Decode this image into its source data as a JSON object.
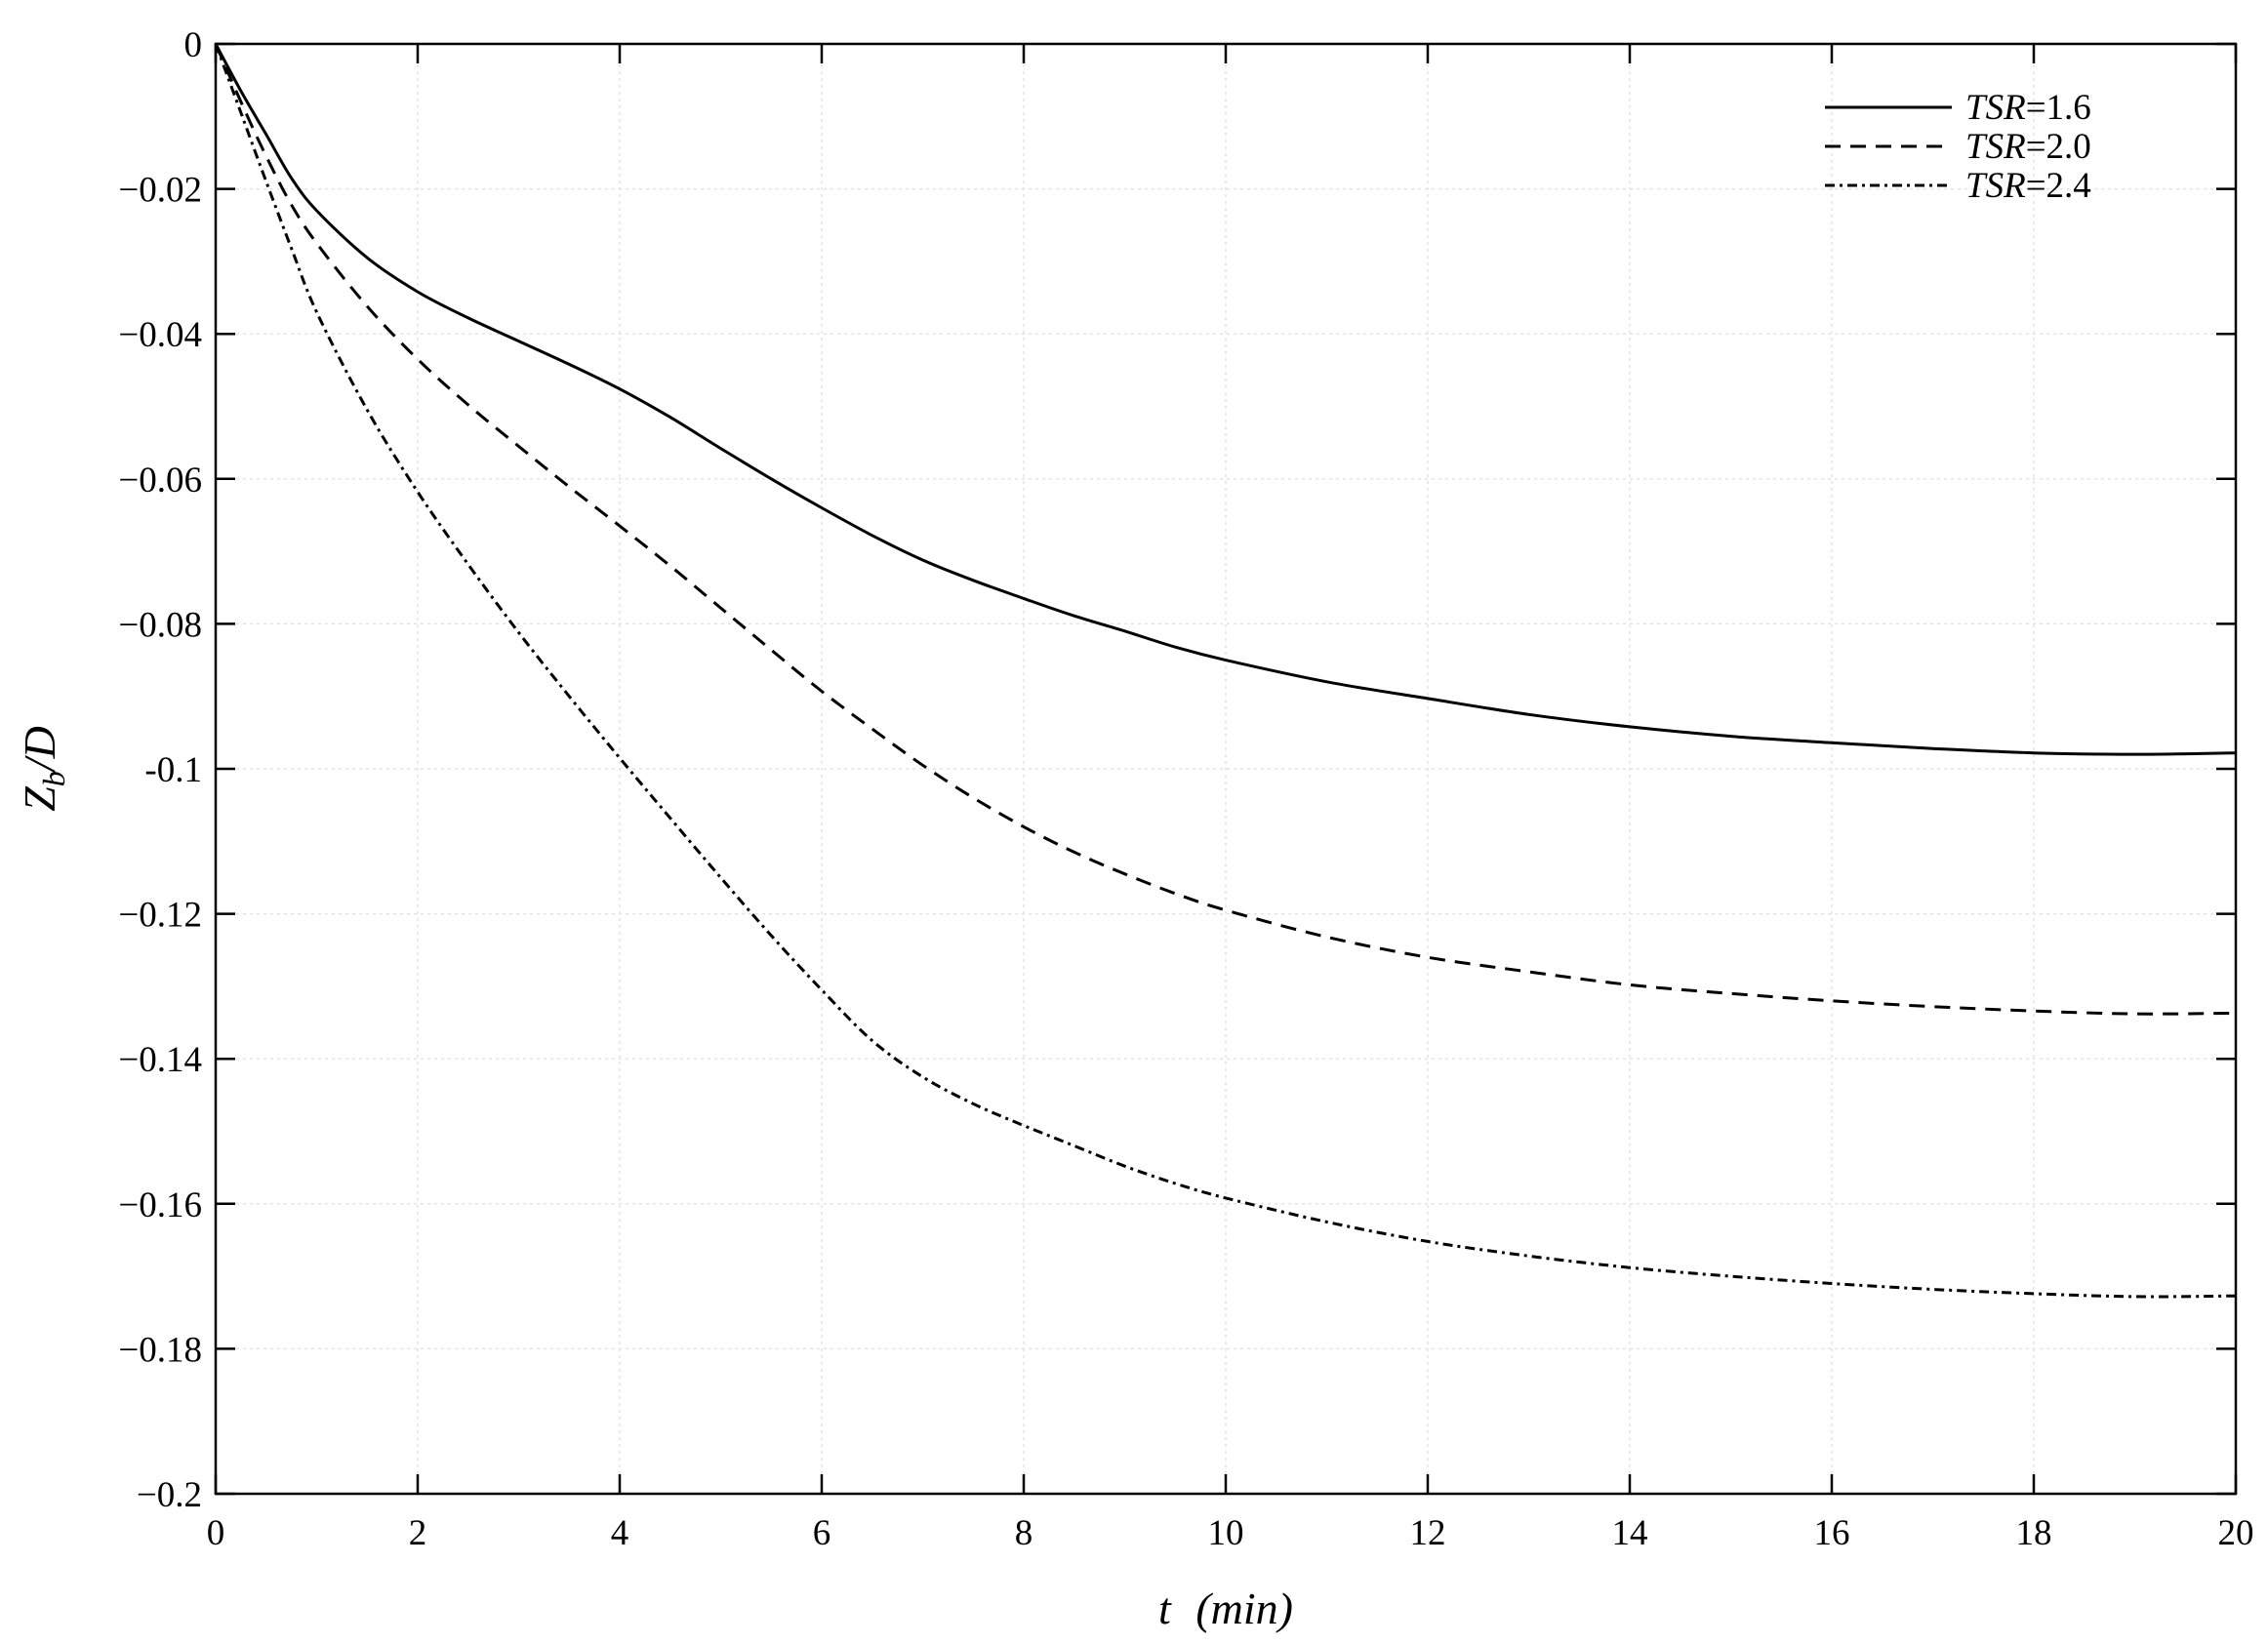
{
  "chart_data": {
    "type": "line",
    "xlabel": {
      "var": "t",
      "unit": "(min)"
    },
    "ylabel": {
      "var": "Z",
      "sub": "b",
      "rest": "/D"
    },
    "xlim": [
      0,
      20
    ],
    "ylim": [
      -0.2,
      0
    ],
    "xticks": [
      0,
      2,
      4,
      6,
      8,
      10,
      12,
      14,
      16,
      18,
      20
    ],
    "yticks": [
      0,
      -0.02,
      -0.04,
      -0.06,
      -0.08,
      -0.1,
      -0.12,
      -0.14,
      -0.16,
      -0.18,
      -0.2
    ],
    "xtick_labels": [
      "0",
      "2",
      "4",
      "6",
      "8",
      "10",
      "12",
      "14",
      "16",
      "18",
      "20"
    ],
    "ytick_labels": [
      "0",
      "−0.02",
      "−0.04",
      "−0.06",
      "−0.08",
      "-0.1",
      "−0.12",
      "−0.14",
      "−0.16",
      "−0.18",
      "−0.2"
    ],
    "grid": true,
    "legend_position": "top-right",
    "series": [
      {
        "name": "TSR=1.6",
        "name_var": "TSR",
        "name_val": "=1.6",
        "style": "solid",
        "x": [
          0,
          0.25,
          0.5,
          0.75,
          1,
          1.5,
          2,
          2.5,
          3,
          3.5,
          4,
          4.5,
          5,
          5.5,
          6,
          6.5,
          7,
          7.5,
          8,
          8.5,
          9,
          9.5,
          10,
          11,
          12,
          13,
          14,
          15,
          16,
          17,
          18,
          19,
          20
        ],
        "y": [
          0,
          -0.0065,
          -0.0125,
          -0.0185,
          -0.023,
          -0.0295,
          -0.0342,
          -0.0378,
          -0.041,
          -0.0442,
          -0.0476,
          -0.0515,
          -0.0558,
          -0.06,
          -0.064,
          -0.0678,
          -0.0712,
          -0.074,
          -0.0765,
          -0.0789,
          -0.081,
          -0.0832,
          -0.085,
          -0.088,
          -0.0903,
          -0.0925,
          -0.0942,
          -0.0955,
          -0.0964,
          -0.0972,
          -0.0978,
          -0.098,
          -0.0978
        ]
      },
      {
        "name": "TSR=2.0",
        "name_var": "TSR",
        "name_val": "=2.0",
        "style": "dashed",
        "x": [
          0,
          0.25,
          0.5,
          0.75,
          1,
          1.5,
          2,
          2.5,
          3,
          3.5,
          4,
          4.5,
          5,
          5.5,
          6,
          6.5,
          7,
          7.5,
          8,
          8.5,
          9,
          9.5,
          10,
          11,
          12,
          13,
          14,
          15,
          16,
          17,
          18,
          19,
          20
        ],
        "y": [
          0,
          -0.008,
          -0.0155,
          -0.0222,
          -0.0275,
          -0.0362,
          -0.0435,
          -0.0498,
          -0.0555,
          -0.0611,
          -0.0665,
          -0.072,
          -0.0778,
          -0.0836,
          -0.0893,
          -0.0945,
          -0.0995,
          -0.104,
          -0.108,
          -0.1115,
          -0.1145,
          -0.1172,
          -0.1195,
          -0.1232,
          -0.126,
          -0.128,
          -0.1298,
          -0.131,
          -0.132,
          -0.1328,
          -0.1334,
          -0.1338,
          -0.1337
        ]
      },
      {
        "name": "TSR=2.4",
        "name_var": "TSR",
        "name_val": "=2.4",
        "style": "dashdot",
        "x": [
          0,
          0.25,
          0.5,
          0.75,
          1,
          1.5,
          2,
          2.5,
          3,
          3.5,
          4,
          4.5,
          5,
          5.5,
          6,
          6.5,
          7,
          7.5,
          8,
          8.5,
          9,
          9.5,
          10,
          11,
          12,
          13,
          14,
          15,
          16,
          17,
          18,
          19,
          20
        ],
        "y": [
          0,
          -0.0095,
          -0.019,
          -0.0282,
          -0.037,
          -0.0505,
          -0.0618,
          -0.0718,
          -0.0812,
          -0.09,
          -0.0985,
          -0.1068,
          -0.115,
          -0.123,
          -0.1305,
          -0.1375,
          -0.1425,
          -0.1462,
          -0.1492,
          -0.152,
          -0.1548,
          -0.1572,
          -0.1592,
          -0.1625,
          -0.1652,
          -0.1672,
          -0.1688,
          -0.17,
          -0.171,
          -0.1718,
          -0.1724,
          -0.1728,
          -0.1727
        ]
      }
    ]
  }
}
